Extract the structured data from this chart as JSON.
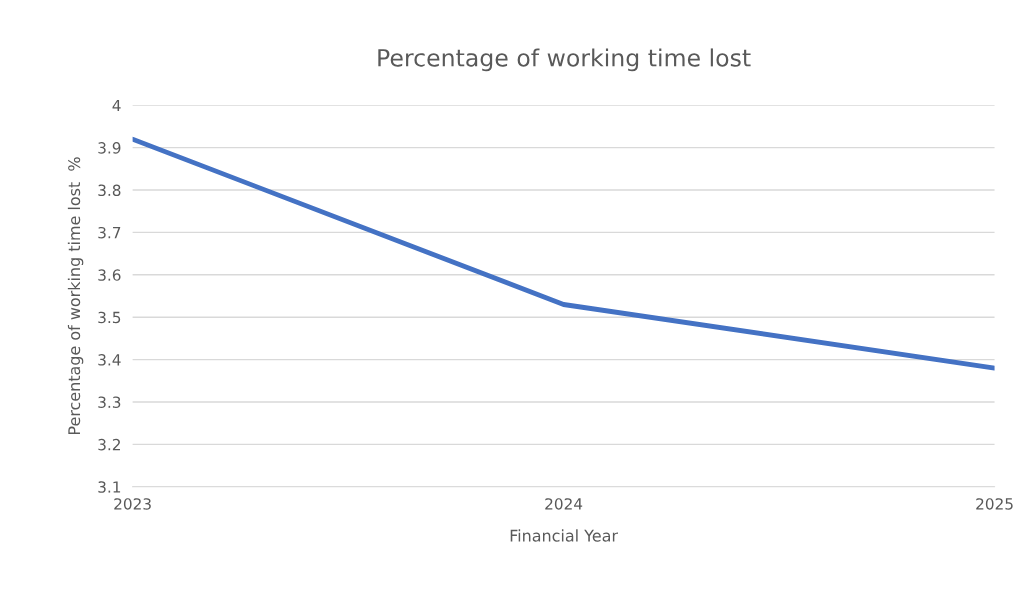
{
  "chart_data": {
    "type": "line",
    "title": "Percentage of working time lost",
    "xlabel": "Financial Year",
    "ylabel": "Percentage of working time lost  %",
    "categories": [
      "2023",
      "2024",
      "2025"
    ],
    "series": [
      {
        "color": "#4472c4",
        "values": [
          3.92,
          3.53,
          3.38
        ]
      }
    ],
    "ylim": [
      3.1,
      4
    ],
    "yticks": [
      3.1,
      3.2,
      3.3,
      3.4,
      3.5,
      3.6,
      3.7,
      3.8,
      3.9,
      4
    ],
    "grid": "y",
    "legend": false,
    "marker": "none",
    "line_style": "solid"
  }
}
